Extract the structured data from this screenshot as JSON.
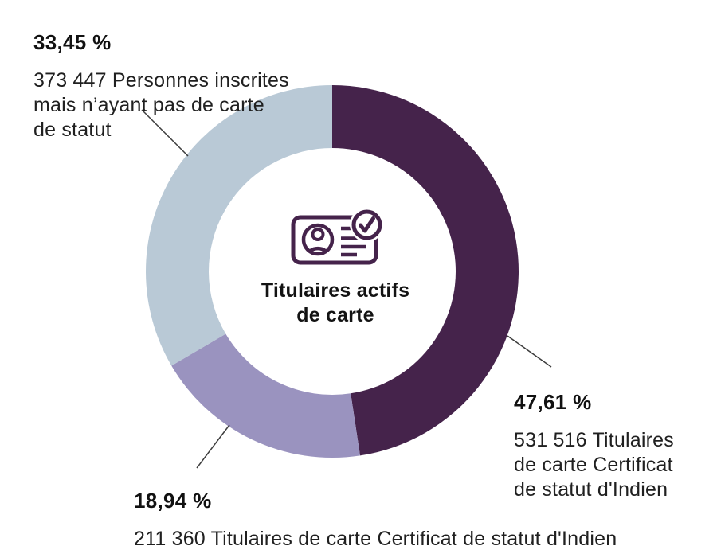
{
  "center": {
    "title": "Titulaires actifs\nde carte",
    "icon": "id-card-check-icon"
  },
  "chart_data": {
    "type": "pie",
    "subtype": "donut",
    "title": "Titulaires actifs de carte",
    "direction": "clockwise",
    "start_angle_deg": 0,
    "legend_position": "callout-labels",
    "slices": [
      {
        "name": "Titulaires de carte Certificat de statut d'Indien",
        "count": 531516,
        "pct": 47.61,
        "color": "#45234B"
      },
      {
        "name": "Titulaires de carte Certificat de statut d'Indien",
        "count": 211360,
        "pct": 18.94,
        "color": "#9A93BF"
      },
      {
        "name": "Personnes inscrites mais n'ayant pas de carte de statut",
        "count": 373447,
        "pct": 33.45,
        "color": "#B9C9D6"
      }
    ]
  },
  "labels": {
    "no_card": {
      "pct": "33,45 %",
      "desc": "373 447 Personnes inscrites\nmais n’ayant pas de carte\nde statut"
    },
    "certificate_large": {
      "pct": "47,61 %",
      "desc": "531 516 Titulaires\nde carte Certificat\nde statut d'Indien"
    },
    "certificate_small": {
      "pct": "18,94 %",
      "desc": "211 360 Titulaires de carte Certificat de statut d'Indien"
    }
  },
  "colors": {
    "icon_stroke": "#45234B",
    "leader_line": "#3D3D3D",
    "background": "#FFFFFF"
  }
}
